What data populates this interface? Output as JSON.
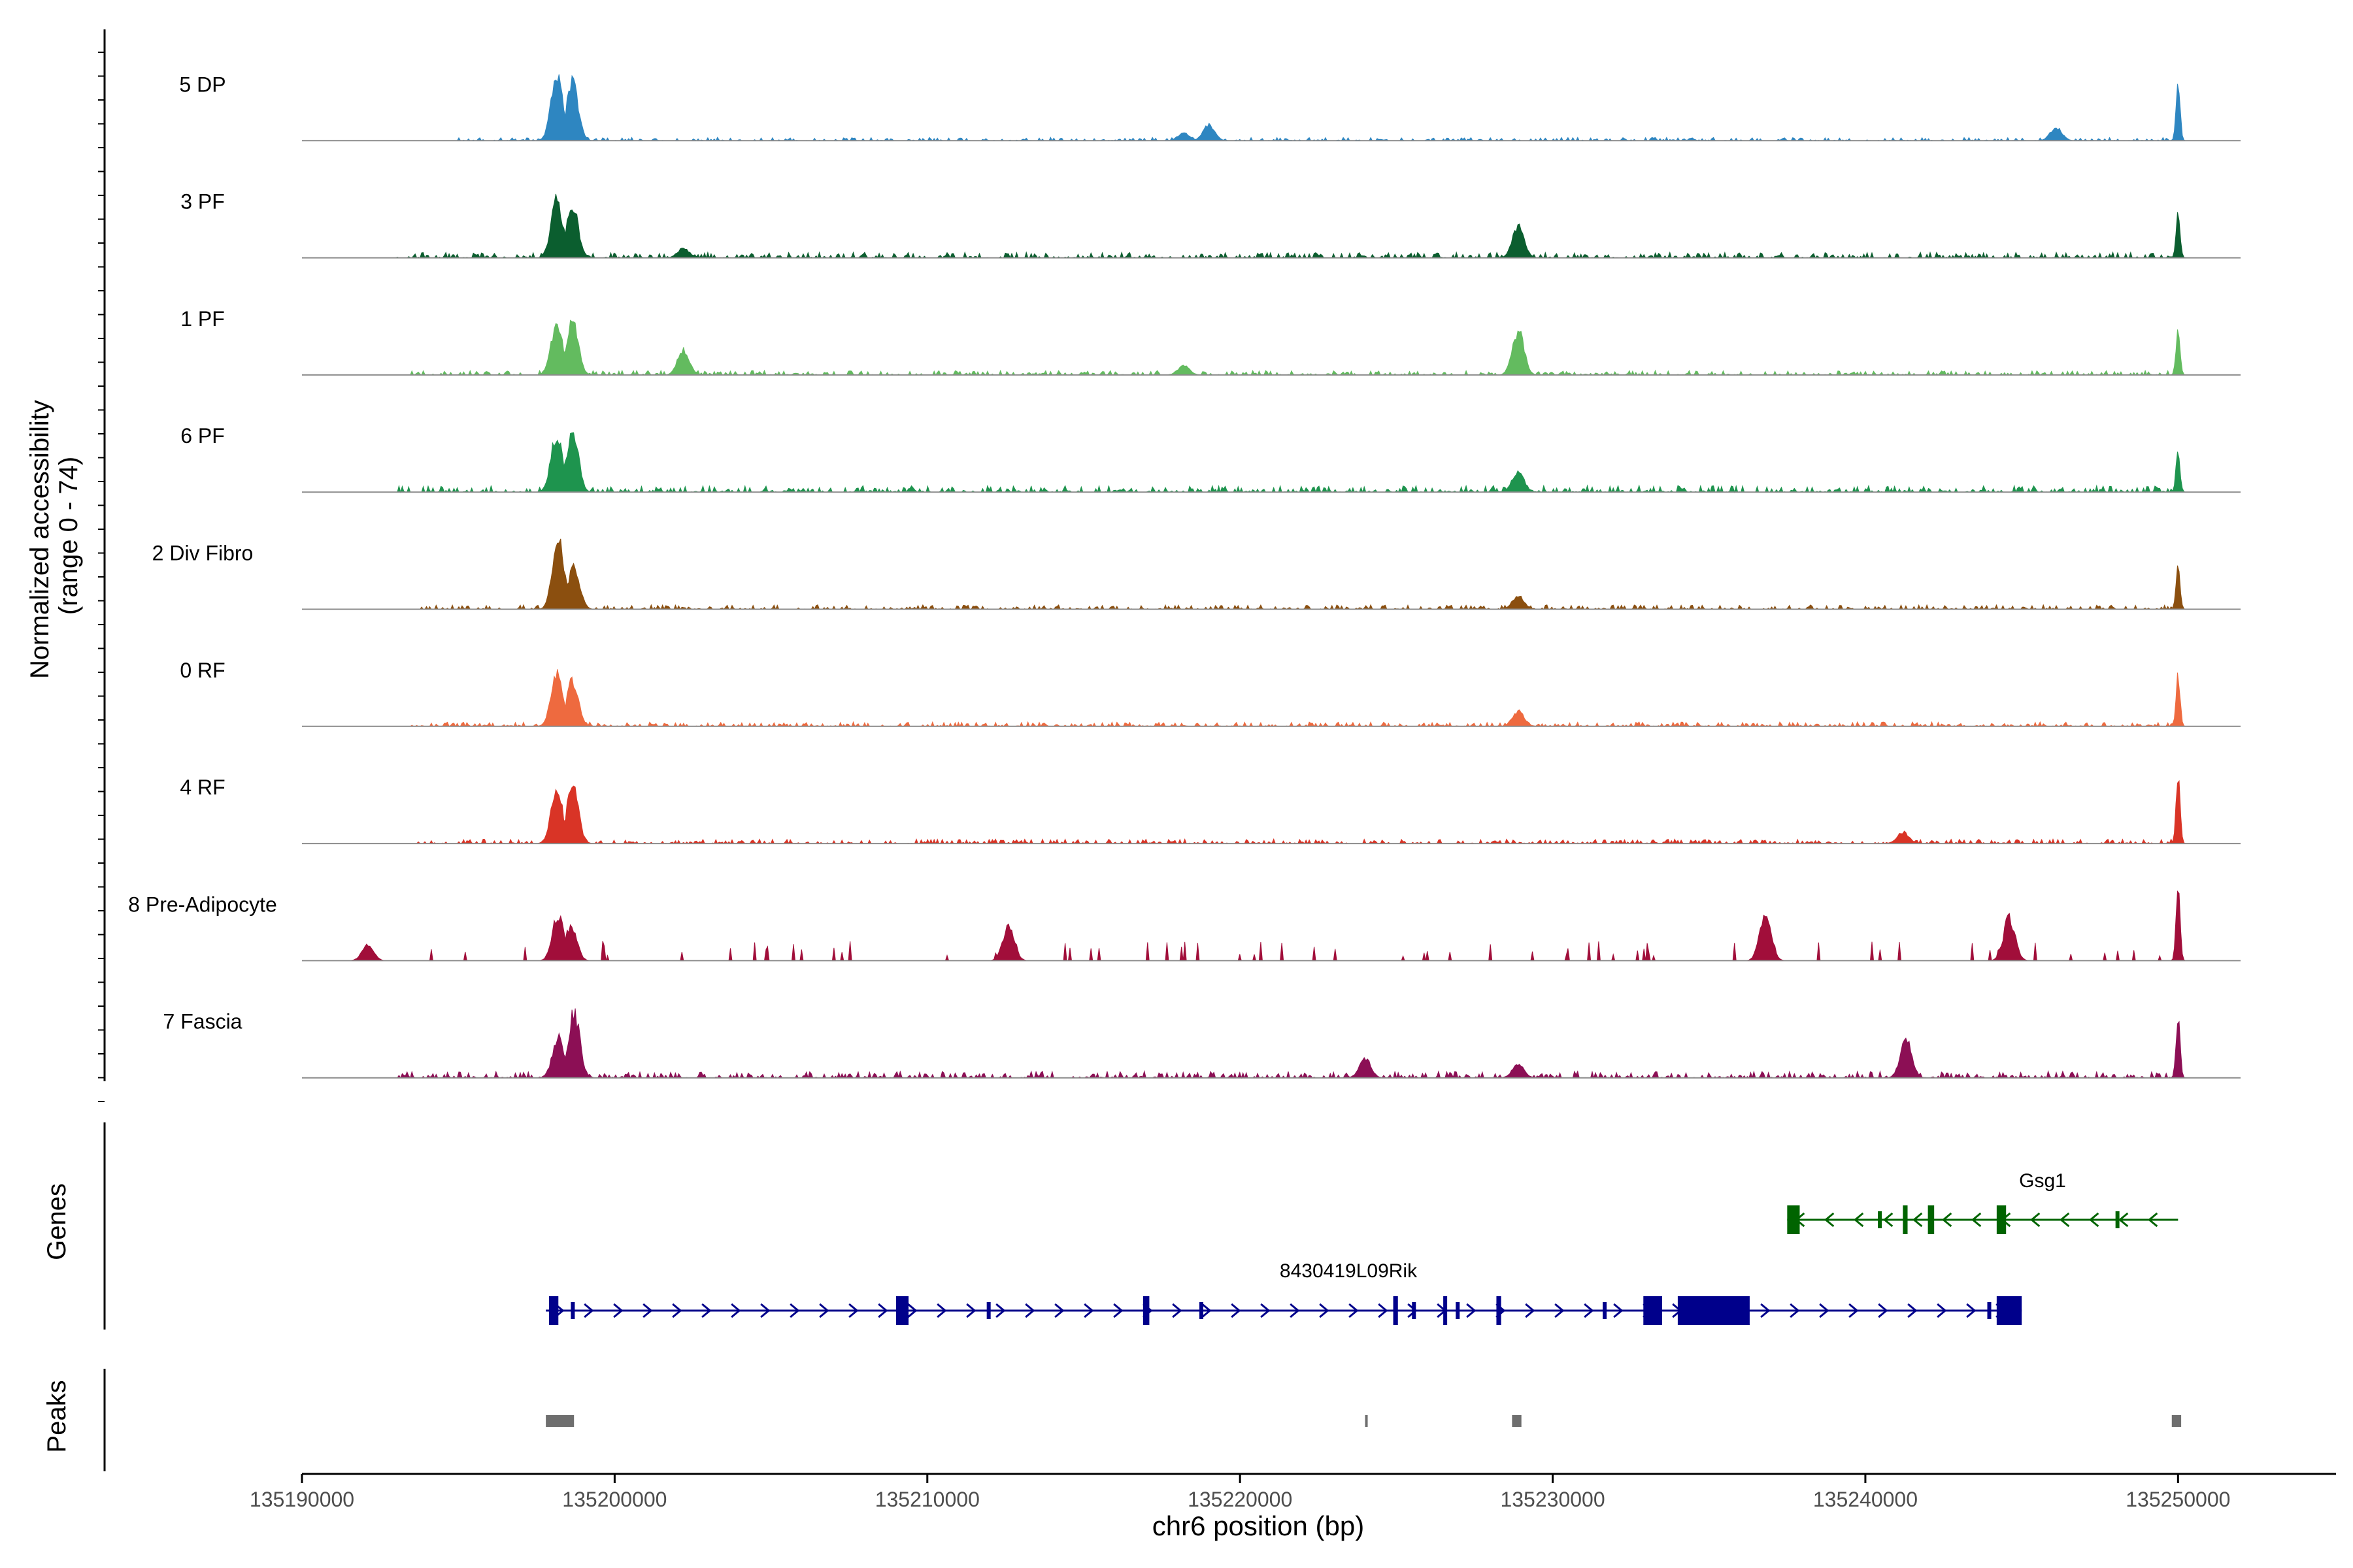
{
  "chart_data": {
    "type": "area",
    "title": "",
    "ylabel_line1": "Normalized accessibility",
    "ylabel_line2": "(range 0 - 74)",
    "xlabel": "chr6 position (bp)",
    "xlim": [
      135190000,
      135252000
    ],
    "ylim": [
      0,
      74
    ],
    "x_ticks": [
      135190000,
      135200000,
      135210000,
      135220000,
      135230000,
      135240000,
      135250000
    ],
    "x_tick_labels": [
      "135190000",
      "135200000",
      "135210000",
      "135220000",
      "135230000",
      "135240000",
      "135250000"
    ],
    "series": [
      {
        "name": "5 DP",
        "color": "#2E86C1",
        "peaks": [
          [
            135198150,
            68
          ],
          [
            135198650,
            60
          ],
          [
            135219000,
            16
          ],
          [
            135218200,
            8
          ],
          [
            135246100,
            14
          ],
          [
            135250000,
            62
          ]
        ],
        "noise_start": 135195000,
        "noise_level": 3
      },
      {
        "name": "3 PF",
        "color": "#0B5E2F",
        "peaks": [
          [
            135198150,
            60
          ],
          [
            135198650,
            54
          ],
          [
            135228900,
            32
          ],
          [
            135202200,
            10
          ],
          [
            135250000,
            48
          ]
        ],
        "noise_start": 135193000,
        "noise_level": 5
      },
      {
        "name": "1 PF",
        "color": "#63BB5F",
        "peaks": [
          [
            135198150,
            52
          ],
          [
            135198650,
            56
          ],
          [
            135202200,
            26
          ],
          [
            135218200,
            10
          ],
          [
            135228900,
            46
          ],
          [
            135250000,
            50
          ]
        ],
        "noise_start": 135193500,
        "noise_level": 4
      },
      {
        "name": "6 PF",
        "color": "#1E944E",
        "peaks": [
          [
            135198150,
            60
          ],
          [
            135198650,
            64
          ],
          [
            135228900,
            22
          ],
          [
            135250000,
            42
          ]
        ],
        "noise_start": 135193000,
        "noise_level": 6
      },
      {
        "name": "2 Div Fibro",
        "color": "#8B4F0F",
        "peaks": [
          [
            135198200,
            74
          ],
          [
            135198700,
            44
          ],
          [
            135228900,
            14
          ],
          [
            135250000,
            46
          ]
        ],
        "noise_start": 135193500,
        "noise_level": 4
      },
      {
        "name": "0 RF",
        "color": "#EE6A3F",
        "peaks": [
          [
            135198150,
            56
          ],
          [
            135198650,
            48
          ],
          [
            135228900,
            16
          ],
          [
            135250000,
            52
          ]
        ],
        "noise_start": 135193500,
        "noise_level": 4
      },
      {
        "name": "4 RF",
        "color": "#D93426",
        "peaks": [
          [
            135198150,
            56
          ],
          [
            135198650,
            60
          ],
          [
            135241200,
            12
          ],
          [
            135250000,
            68
          ]
        ],
        "noise_start": 135193500,
        "noise_level": 4
      },
      {
        "name": "8 Pre-Adipocyte",
        "color": "#A10E3A",
        "peaks": [
          [
            135192100,
            16
          ],
          [
            135198200,
            48
          ],
          [
            135198600,
            36
          ],
          [
            135212600,
            34
          ],
          [
            135236800,
            48
          ],
          [
            135244600,
            44
          ],
          [
            135250000,
            74
          ]
        ],
        "noise_start": 135192000,
        "noise_level": 14,
        "sparse": true
      },
      {
        "name": "7 Fascia",
        "color": "#8C0F55",
        "peaks": [
          [
            135198200,
            42
          ],
          [
            135198700,
            68
          ],
          [
            135224000,
            20
          ],
          [
            135228900,
            14
          ],
          [
            135241300,
            40
          ],
          [
            135250000,
            62
          ]
        ],
        "noise_start": 135193000,
        "noise_level": 6
      }
    ],
    "gene_track": {
      "label": "Genes",
      "genes": [
        {
          "name": "Gsg1",
          "color": "#006400",
          "start": 135237500,
          "end": 135250000,
          "strand": "-",
          "exons": [
            [
              135237500,
              135237900,
              "cds"
            ],
            [
              135240400,
              135240450,
              "utr"
            ],
            [
              135241200,
              135241350,
              "cds"
            ],
            [
              135242000,
              135242200,
              "cds"
            ],
            [
              135244200,
              135244500,
              "cds"
            ],
            [
              135248000,
              135248060,
              "utr"
            ]
          ]
        },
        {
          "name": "8430419L09Rik",
          "color": "#00008B",
          "start": 135197800,
          "end": 135245000,
          "strand": "+",
          "exons": [
            [
              135197900,
              135198200,
              "cds"
            ],
            [
              135198600,
              135198650,
              "utr"
            ],
            [
              135209000,
              135209400,
              "cds"
            ],
            [
              135211900,
              135211980,
              "utr"
            ],
            [
              135216900,
              135217100,
              "cds"
            ],
            [
              135218700,
              135218800,
              "utr"
            ],
            [
              135224900,
              135225050,
              "cds"
            ],
            [
              135225500,
              135225560,
              "utr"
            ],
            [
              135226500,
              135226600,
              "cds"
            ],
            [
              135226900,
              135226960,
              "utr"
            ],
            [
              135228200,
              135228350,
              "cds"
            ],
            [
              135231600,
              135231700,
              "utr"
            ],
            [
              135232900,
              135233500,
              "cds"
            ],
            [
              135234000,
              135236300,
              "cds"
            ],
            [
              135243900,
              135243960,
              "utr"
            ],
            [
              135244200,
              135245000,
              "cds"
            ]
          ]
        }
      ]
    },
    "peak_track": {
      "label": "Peaks",
      "color": "#6E6E6E",
      "peaks": [
        [
          135197800,
          135198700
        ],
        [
          135224000,
          135224050
        ],
        [
          135228700,
          135229000
        ],
        [
          135249800,
          135250100
        ]
      ]
    }
  }
}
